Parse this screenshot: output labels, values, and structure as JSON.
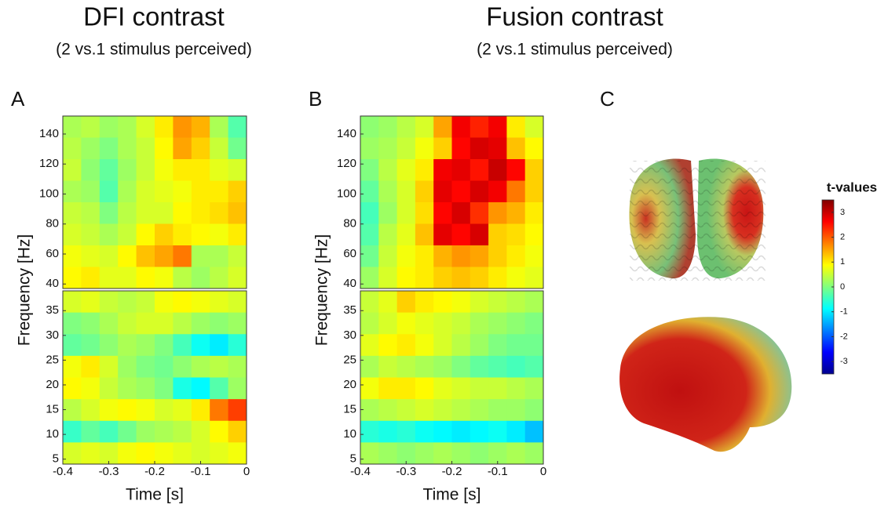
{
  "chart_data": [
    {
      "type": "heatmap",
      "label": "A",
      "title": "DFI contrast",
      "subtitle": "(2 vs.1 stimulus perceived)",
      "xlabel": "Time [s]",
      "ylabel": "Frequency [Hz]",
      "xlim": [
        -0.4,
        0
      ],
      "xticks": [
        -0.4,
        -0.3,
        -0.2,
        -0.1,
        0
      ],
      "clim": [
        -3.5,
        3.5
      ],
      "bands": [
        {
          "ylim": [
            37,
            152
          ],
          "yticks": [
            40,
            60,
            80,
            100,
            120,
            140
          ],
          "z": [
            [
              0.3,
              0.4,
              0.2,
              0.3,
              0.6,
              1.0,
              1.6,
              1.4,
              0.3,
              -0.3
            ],
            [
              0.4,
              0.2,
              0.0,
              0.3,
              0.5,
              0.9,
              1.5,
              1.2,
              0.5,
              -0.1
            ],
            [
              0.5,
              0.1,
              -0.2,
              0.2,
              0.5,
              0.8,
              1.0,
              1.0,
              0.7,
              0.6
            ],
            [
              0.3,
              0.2,
              -0.3,
              0.3,
              0.6,
              0.7,
              0.8,
              1.0,
              1.0,
              1.2
            ],
            [
              0.5,
              0.4,
              0.0,
              0.4,
              0.6,
              0.6,
              0.9,
              1.0,
              1.1,
              1.3
            ],
            [
              0.6,
              0.5,
              0.3,
              0.5,
              0.9,
              1.2,
              1.0,
              0.9,
              0.8,
              1.0
            ],
            [
              0.8,
              0.7,
              0.6,
              0.9,
              1.3,
              1.5,
              1.8,
              0.3,
              0.3,
              0.5
            ],
            [
              0.9,
              1.0,
              0.7,
              0.7,
              0.9,
              0.8,
              0.4,
              0.2,
              0.4,
              0.6
            ]
          ]
        },
        {
          "ylim": [
            4,
            39
          ],
          "yticks": [
            5,
            10,
            15,
            20,
            25,
            30,
            35
          ],
          "z": [
            [
              0.6,
              0.7,
              0.5,
              0.4,
              0.5,
              0.8,
              0.9,
              0.8,
              0.7,
              0.6
            ],
            [
              0.0,
              0.1,
              0.3,
              0.5,
              0.6,
              0.6,
              0.4,
              0.2,
              0.1,
              0.2
            ],
            [
              -0.2,
              -0.1,
              0.1,
              0.3,
              0.2,
              0.0,
              -0.4,
              -0.8,
              -1.0,
              -0.6
            ],
            [
              0.8,
              1.0,
              0.6,
              0.2,
              0.0,
              -0.1,
              0.1,
              0.3,
              0.4,
              0.3
            ],
            [
              0.9,
              0.8,
              0.5,
              0.3,
              0.2,
              0.0,
              -0.7,
              -0.9,
              -0.3,
              0.2
            ],
            [
              0.4,
              0.6,
              0.8,
              0.9,
              0.8,
              0.6,
              0.7,
              1.0,
              1.8,
              2.2
            ],
            [
              -0.5,
              -0.2,
              -0.4,
              -0.1,
              0.2,
              0.3,
              0.4,
              0.6,
              0.9,
              1.2
            ],
            [
              0.6,
              0.7,
              0.6,
              0.8,
              0.9,
              0.8,
              0.7,
              0.6,
              0.7,
              0.8
            ]
          ]
        }
      ]
    },
    {
      "type": "heatmap",
      "label": "B",
      "title": "Fusion contrast",
      "subtitle": "(2 vs.1 stimulus perceived)",
      "xlabel": "Time [s]",
      "ylabel": "Frequency [Hz]",
      "xlim": [
        -0.4,
        0
      ],
      "xticks": [
        -0.4,
        -0.3,
        -0.2,
        -0.1,
        0
      ],
      "clim": [
        -3.5,
        3.5
      ],
      "bands": [
        {
          "ylim": [
            37,
            152
          ],
          "yticks": [
            40,
            60,
            80,
            100,
            120,
            140
          ],
          "z": [
            [
              0.1,
              0.2,
              0.4,
              0.6,
              1.5,
              2.7,
              2.4,
              2.7,
              1.0,
              0.6
            ],
            [
              0.2,
              0.3,
              0.5,
              0.8,
              1.2,
              2.6,
              2.9,
              2.8,
              1.3,
              0.9
            ],
            [
              0.0,
              0.4,
              0.7,
              1.0,
              2.7,
              2.8,
              2.5,
              3.0,
              2.6,
              1.2
            ],
            [
              -0.2,
              0.3,
              0.6,
              1.2,
              2.8,
              2.6,
              2.9,
              2.7,
              1.8,
              1.2
            ],
            [
              -0.4,
              0.2,
              0.6,
              1.1,
              2.6,
              2.9,
              2.3,
              1.6,
              1.4,
              1.0
            ],
            [
              -0.3,
              0.4,
              0.7,
              1.3,
              2.8,
              2.6,
              2.9,
              1.2,
              1.1,
              0.9
            ],
            [
              -0.1,
              0.5,
              0.8,
              1.0,
              1.4,
              1.6,
              1.5,
              1.2,
              1.0,
              0.8
            ],
            [
              0.2,
              0.6,
              0.9,
              1.0,
              1.2,
              1.3,
              1.2,
              1.0,
              0.8,
              0.7
            ]
          ]
        },
        {
          "ylim": [
            4,
            39
          ],
          "yticks": [
            5,
            10,
            15,
            20,
            25,
            30,
            35
          ],
          "z": [
            [
              0.5,
              0.7,
              1.2,
              1.0,
              0.9,
              0.8,
              0.6,
              0.5,
              0.4,
              0.3
            ],
            [
              0.4,
              0.6,
              0.8,
              0.7,
              0.6,
              0.5,
              0.3,
              0.2,
              0.1,
              0.0
            ],
            [
              0.7,
              0.9,
              1.0,
              0.8,
              0.6,
              0.4,
              0.2,
              0.0,
              -0.1,
              -0.1
            ],
            [
              0.3,
              0.5,
              0.4,
              0.3,
              0.2,
              0.0,
              -0.2,
              -0.3,
              -0.4,
              -0.3
            ],
            [
              0.8,
              1.0,
              1.0,
              0.9,
              0.7,
              0.6,
              0.5,
              0.5,
              0.4,
              0.3
            ],
            [
              0.3,
              0.4,
              0.5,
              0.6,
              0.5,
              0.4,
              0.3,
              0.2,
              0.2,
              0.1
            ],
            [
              -0.6,
              -0.7,
              -0.6,
              -0.8,
              -0.9,
              -1.0,
              -0.9,
              -0.8,
              -1.0,
              -1.3
            ],
            [
              0.3,
              0.2,
              0.1,
              0.2,
              0.3,
              0.2,
              0.1,
              0.2,
              0.3,
              0.2
            ]
          ]
        }
      ]
    },
    {
      "type": "colorbar",
      "label": "C",
      "title": "t-values",
      "ylim": [
        -3.5,
        3.5
      ],
      "yticks": [
        -3,
        -2,
        -1,
        0,
        1,
        2,
        3
      ]
    }
  ]
}
